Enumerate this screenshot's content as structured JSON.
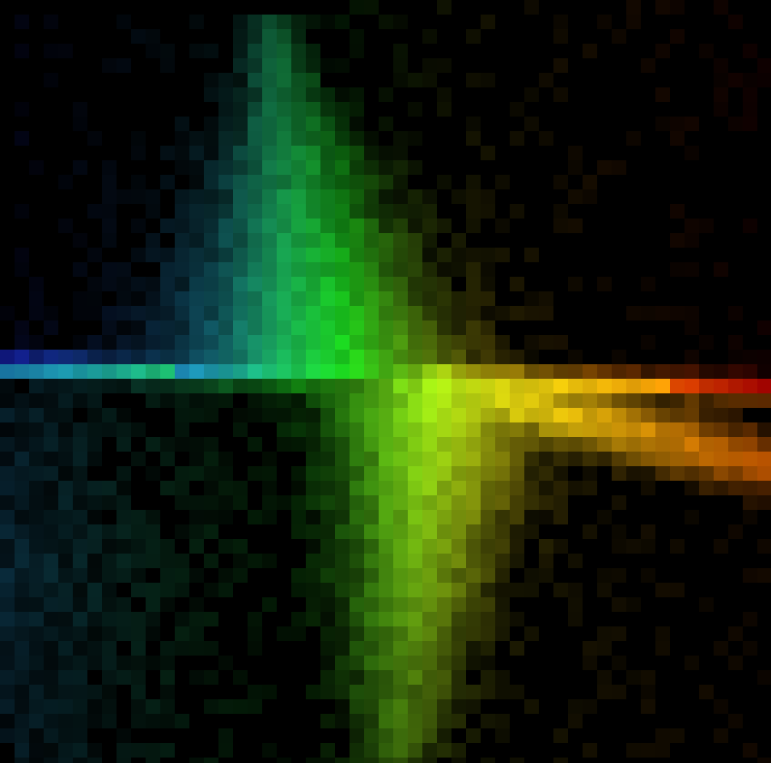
{
  "image": {
    "subject": "pixelated-spectrum-burst",
    "background_color": "#000000",
    "palette": {
      "blue": "#1f2cff",
      "cyan": "#1ea7b8",
      "green": "#20ff20",
      "yellow": "#ffee10",
      "orange": "#ff7a00",
      "red": "#c20000"
    }
  }
}
